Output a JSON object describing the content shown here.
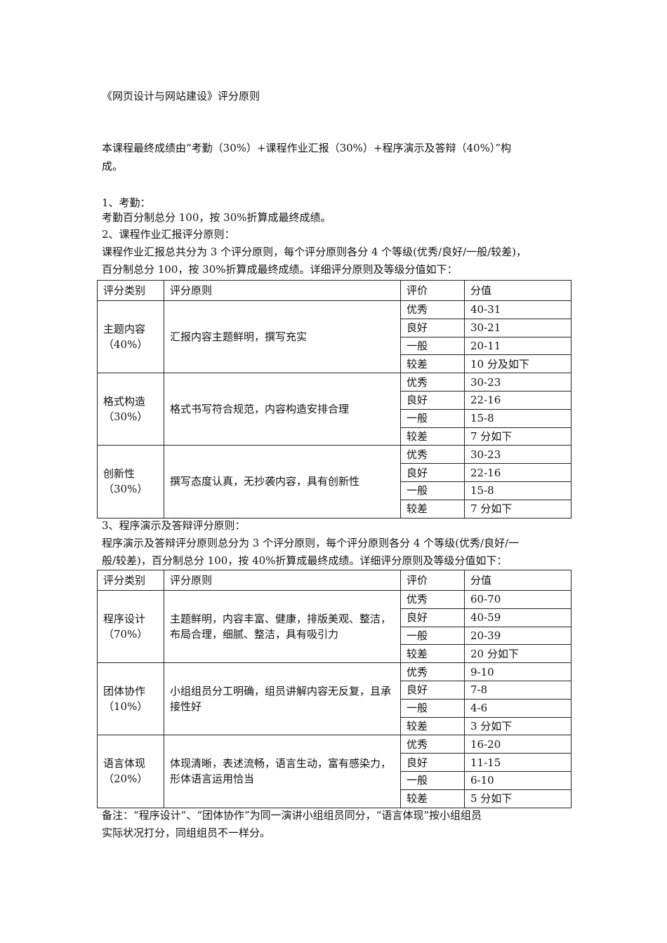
{
  "title": "《网页设计与网站建设》评分原则",
  "intro": [
    "本课程最终成绩由“考勤（30%）+课程作业汇报（30%）+程序演示及答辩（40%）”构",
    "成。"
  ],
  "section1": {
    "heading": "1、考勤：",
    "text": "考勤百分制总分 100，按 30%折算成最终成绩。"
  },
  "section2": {
    "heading": "2、课程作业汇报评分原则：",
    "text": [
      "课程作业汇报总共分为 3 个评分原则，每个评分原则各分 4 个等级(优秀/良好/一般/较差)，",
      "百分制总分 100，按 30%折算成最终成绩。详细评分原则及等级分值如下："
    ],
    "table": {
      "headers": [
        "评分类别",
        "评分原则",
        "评价",
        "分值"
      ],
      "groups": [
        {
          "category": "主题内容",
          "weight": "（40%）",
          "principle": "汇报内容主题鲜明，撰写充实",
          "grades": [
            "优秀",
            "良好",
            "一般",
            "较差"
          ],
          "scores": [
            "40-31",
            "30-21",
            "20-11",
            "10 分及如下"
          ]
        },
        {
          "category": "格式构造",
          "weight": "（30%）",
          "principle": "格式书写符合规范，内容构造安排合理",
          "grades": [
            "优秀",
            "良好",
            "一般",
            "较差"
          ],
          "scores": [
            "30-23",
            "22-16",
            "15-8",
            "7 分如下"
          ]
        },
        {
          "category": "创新性",
          "weight": "（30%）",
          "principle": "撰写态度认真，无抄袭内容，具有创新性",
          "grades": [
            "优秀",
            "良好",
            "一般",
            "较差"
          ],
          "scores": [
            "30-23",
            "22-16",
            "15-8",
            "7 分如下"
          ]
        }
      ]
    }
  },
  "section3": {
    "heading": "3、程序演示及答辩评分原则：",
    "text": [
      "程序演示及答辩评分原则总分为 3 个评分原则，每个评分原则各分 4 个等级(优秀/良好/一",
      "般/较差)，百分制总分 100，按 40%折算成最终成绩。详细评分原则及等级分值如下："
    ],
    "table": {
      "headers": [
        "评分类别",
        "评分原则",
        "评价",
        "分值"
      ],
      "groups": [
        {
          "category": "程序设计",
          "weight": "（70%）",
          "principle": "主题鲜明，内容丰富、健康，排版美观、整洁，布局合理，细腻、整洁，具有吸引力",
          "grades": [
            "优秀",
            "良好",
            "一般",
            "较差"
          ],
          "scores": [
            "60-70",
            "40-59",
            "20-39",
            "20 分如下"
          ]
        },
        {
          "category": "团体协作",
          "weight": "（10%）",
          "principle": "小组组员分工明确，组员讲解内容无反复，且承接性好",
          "grades": [
            "优秀",
            "良好",
            "一般",
            "较差"
          ],
          "scores": [
            "9-10",
            "7-8",
            "4-6",
            "3 分如下"
          ]
        },
        {
          "category": "语言体现",
          "weight": "（20%）",
          "principle": "体现清晰，表述流畅，语言生动，富有感染力，形体语言运用恰当",
          "grades": [
            "优秀",
            "良好",
            "一般",
            "较差"
          ],
          "scores": [
            "16-20",
            "11-15",
            "6-10",
            "5 分如下"
          ]
        }
      ]
    }
  },
  "note": [
    "备注：“程序设计”、“团体协作”为同一演讲小组组员同分，“语言体现”按小组组员",
    "实际状况打分，同组组员不一样分。"
  ]
}
